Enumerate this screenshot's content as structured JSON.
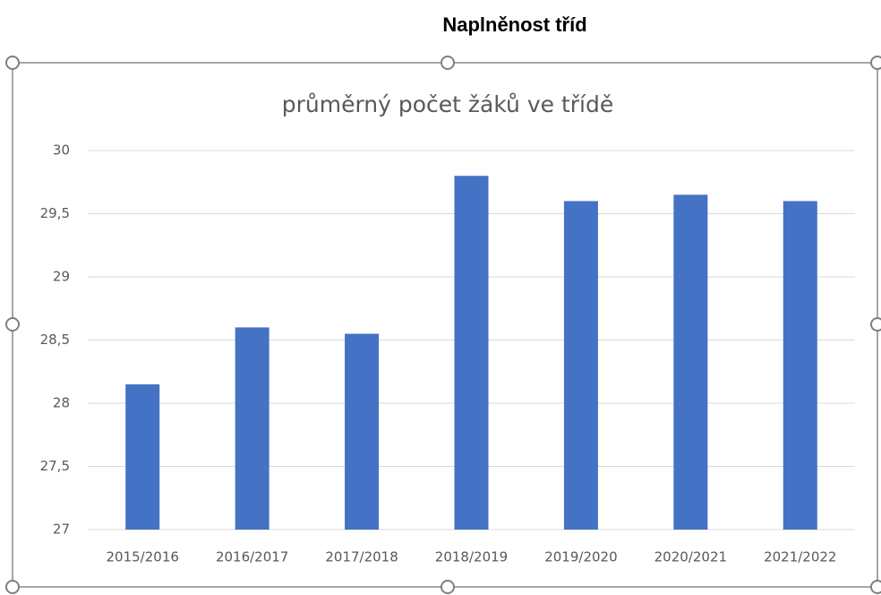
{
  "heading": "Naplněnost tříd",
  "chart_data": {
    "type": "bar",
    "title": "průměrný počet žáků ve třídě",
    "categories": [
      "2015/2016",
      "2016/2017",
      "2017/2018",
      "2018/2019",
      "2019/2020",
      "2020/2021",
      "2021/2022"
    ],
    "values": [
      28.15,
      28.6,
      28.55,
      29.8,
      29.6,
      29.65,
      29.6
    ],
    "color": "#4472c4",
    "ylim": [
      27,
      30
    ],
    "yticks": [
      27,
      {
        "value": 27.5,
        "label": "27,5"
      },
      28,
      {
        "value": 28.5,
        "label": "28,5"
      },
      29,
      {
        "value": 29.5,
        "label": "29,5"
      },
      30
    ],
    "grid": true
  }
}
